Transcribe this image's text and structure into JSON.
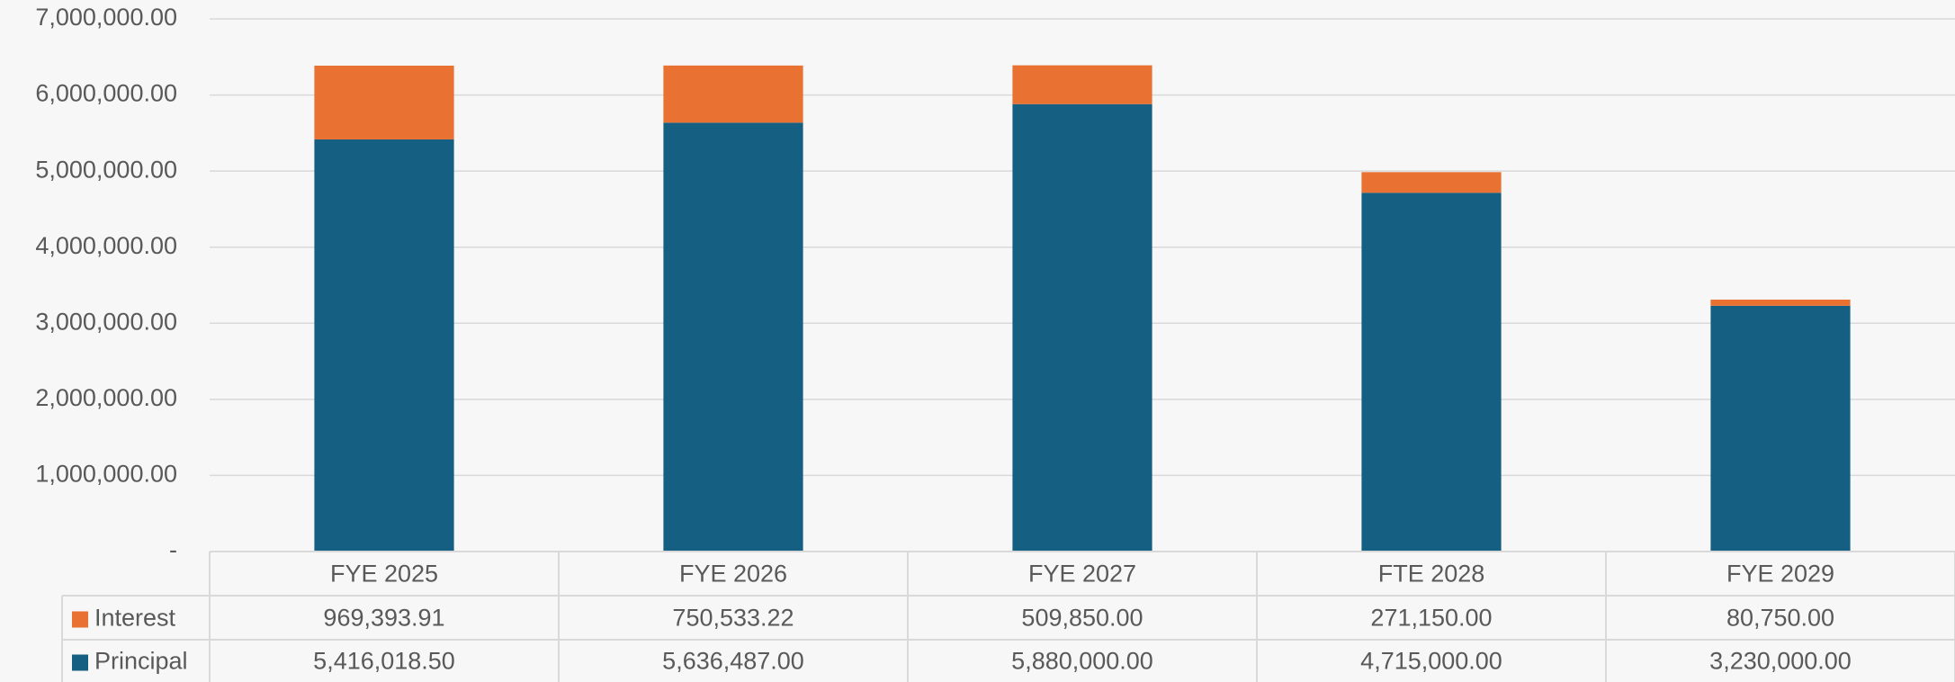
{
  "chart_data": {
    "type": "stacked_bar",
    "categories": [
      "FYE 2025",
      "FYE 2026",
      "FYE 2027",
      "FTE 2028",
      "FYE 2029"
    ],
    "series": [
      {
        "name": "Interest",
        "color": "#e97132",
        "values": [
          969393.91,
          750533.22,
          509850,
          271150,
          80750
        ],
        "value_labels": [
          "969,393.91",
          "750,533.22",
          "509,850.00",
          "271,150.00",
          "80,750.00"
        ]
      },
      {
        "name": "Principal",
        "color": "#156082",
        "values": [
          5416018.5,
          5636487,
          5880000,
          4715000,
          3230000
        ],
        "value_labels": [
          "5,416,018.50",
          "5,636,487.00",
          "5,880,000.00",
          "4,715,000.00",
          "3,230,000.00"
        ]
      }
    ],
    "stack_order": [
      1,
      0
    ],
    "ylim": [
      0,
      7000000
    ],
    "yticks": [
      {
        "value": 0,
        "label": "-"
      },
      {
        "value": 1000000,
        "label": "1,000,000.00"
      },
      {
        "value": 2000000,
        "label": "2,000,000.00"
      },
      {
        "value": 3000000,
        "label": "3,000,000.00"
      },
      {
        "value": 4000000,
        "label": "4,000,000.00"
      },
      {
        "value": 5000000,
        "label": "5,000,000.00"
      },
      {
        "value": 6000000,
        "label": "6,000,000.00"
      },
      {
        "value": 7000000,
        "label": "7,000,000.00"
      }
    ],
    "grid": true
  }
}
